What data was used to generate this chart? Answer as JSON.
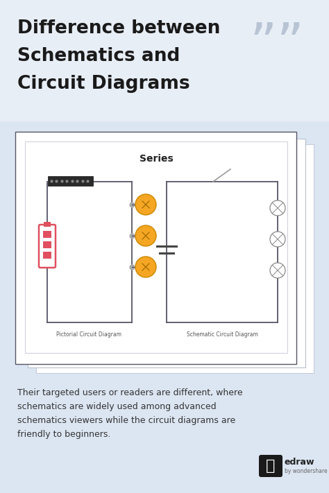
{
  "bg_color": "#cdd8e8",
  "title_text_line1": "Difference between",
  "title_text_line2": "Schematics and",
  "title_text_line3": "Circuit Diagrams",
  "title_color": "#1a1a1a",
  "title_fontsize": 19,
  "quote_color": "#b8c4d4",
  "body_text": "Their targeted users or readers are different, where\nschematics are widely used among advanced\nschematics viewers while the circuit diagrams are\nfriendly to beginners.",
  "body_color": "#333333",
  "body_fontsize": 9,
  "series_label": "Series",
  "pictorial_label": "Pictorial Circuit Diagram",
  "schematic_label": "Schematic Circuit Diagram",
  "edraw_text": "edraw",
  "edraw_sub": "by wondershare",
  "bulb_color": "#f5a623",
  "bulb_edge": "#cc8800",
  "battery_color": "#e05060",
  "wire_color": "#555566",
  "switch_color": "#999999",
  "resistor_bg": "#2a2a2a",
  "card_shadow3": "#d0d8e4",
  "card_shadow2": "#c8d0de",
  "card_main_bg": "#ffffff",
  "card_main_border": "#666677",
  "inner_border": "#ccccdd"
}
